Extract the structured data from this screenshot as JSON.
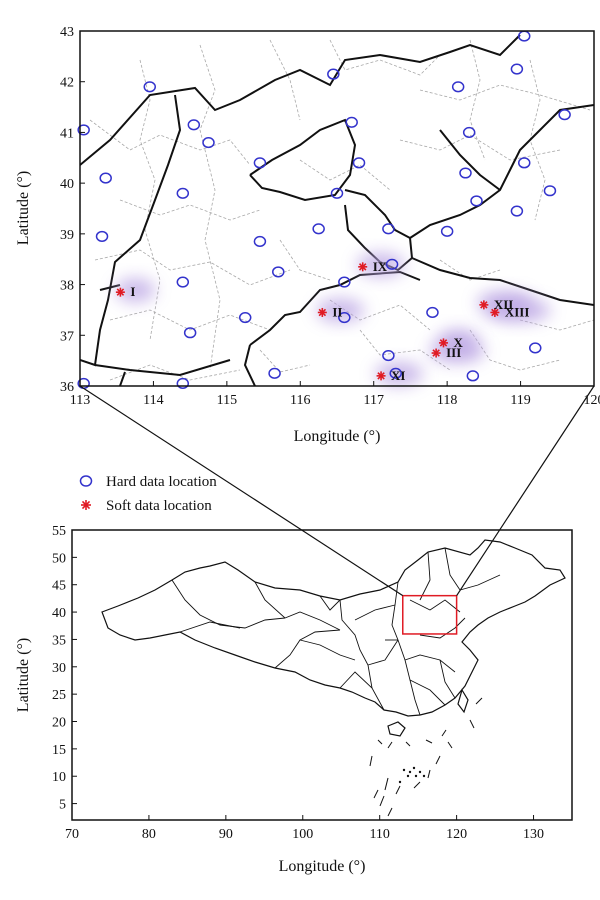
{
  "colors": {
    "hard_marker": "#3333cc",
    "soft_marker": "#e01b24",
    "site_glow": "#b9a3e3",
    "zoom_box": "#e01b24",
    "boundary": "#111111",
    "county_lines": "#a8a8a8"
  },
  "legend": {
    "hard_label": "Hard data location",
    "soft_label": "Soft data location"
  },
  "top_map": {
    "xlabel": "Longitude (°)",
    "ylabel": "Latitude (°)",
    "xlim": [
      113,
      120
    ],
    "ylim": [
      36,
      43
    ],
    "xticks": [
      "113",
      "114",
      "115",
      "116",
      "117",
      "118",
      "119",
      "120"
    ],
    "yticks": [
      "36",
      "37",
      "38",
      "39",
      "40",
      "41",
      "42",
      "43"
    ]
  },
  "bottom_map": {
    "xlabel": "Longitude (°)",
    "ylabel": "Latitude (°)",
    "xlim": [
      70,
      135
    ],
    "ylim": [
      2,
      55
    ],
    "xticks": [
      "70",
      "80",
      "90",
      "100",
      "110",
      "120",
      "130"
    ],
    "yticks": [
      "5",
      "10",
      "15",
      "20",
      "25",
      "30",
      "35",
      "40",
      "45",
      "50",
      "55"
    ],
    "zoom_box": {
      "lon": [
        113,
        120
      ],
      "lat": [
        36,
        43
      ]
    }
  },
  "chart_data": {
    "type": "scatter",
    "series": [
      {
        "name": "Hard data location",
        "points": [
          [
            113.05,
            41.05
          ],
          [
            113.35,
            40.1
          ],
          [
            113.3,
            38.95
          ],
          [
            113.95,
            41.9
          ],
          [
            114.55,
            41.15
          ],
          [
            114.75,
            40.8
          ],
          [
            114.4,
            39.8
          ],
          [
            114.4,
            38.05
          ],
          [
            114.5,
            37.05
          ],
          [
            114.4,
            36.05
          ],
          [
            113.05,
            36.05
          ],
          [
            115.45,
            40.4
          ],
          [
            115.45,
            38.85
          ],
          [
            115.7,
            38.25
          ],
          [
            115.25,
            37.35
          ],
          [
            115.65,
            36.25
          ],
          [
            116.45,
            42.15
          ],
          [
            116.7,
            41.2
          ],
          [
            116.5,
            39.8
          ],
          [
            116.25,
            39.1
          ],
          [
            116.6,
            38.05
          ],
          [
            116.6,
            37.35
          ],
          [
            116.8,
            40.4
          ],
          [
            117.2,
            39.1
          ],
          [
            117.25,
            38.4
          ],
          [
            117.2,
            36.6
          ],
          [
            117.3,
            36.25
          ],
          [
            118.15,
            41.9
          ],
          [
            118.3,
            41.0
          ],
          [
            118.25,
            40.2
          ],
          [
            118.4,
            39.65
          ],
          [
            118.0,
            39.05
          ],
          [
            117.8,
            37.45
          ],
          [
            118.35,
            36.2
          ],
          [
            119.05,
            42.9
          ],
          [
            118.95,
            42.25
          ],
          [
            119.05,
            40.4
          ],
          [
            118.95,
            39.45
          ],
          [
            119.4,
            39.85
          ],
          [
            119.6,
            41.35
          ],
          [
            119.2,
            36.75
          ]
        ]
      },
      {
        "name": "Soft data location",
        "points": [
          {
            "label": "I",
            "lon": 113.55,
            "lat": 37.85
          },
          {
            "label": "II",
            "lon": 116.3,
            "lat": 37.45
          },
          {
            "label": "III",
            "lon": 117.85,
            "lat": 36.65
          },
          {
            "label": "IX",
            "lon": 116.85,
            "lat": 38.35
          },
          {
            "label": "X",
            "lon": 117.95,
            "lat": 36.85
          },
          {
            "label": "XI",
            "lon": 117.1,
            "lat": 36.2
          },
          {
            "label": "XII",
            "lon": 118.5,
            "lat": 37.6
          },
          {
            "label": "XIII",
            "lon": 118.65,
            "lat": 37.45
          }
        ]
      }
    ]
  }
}
